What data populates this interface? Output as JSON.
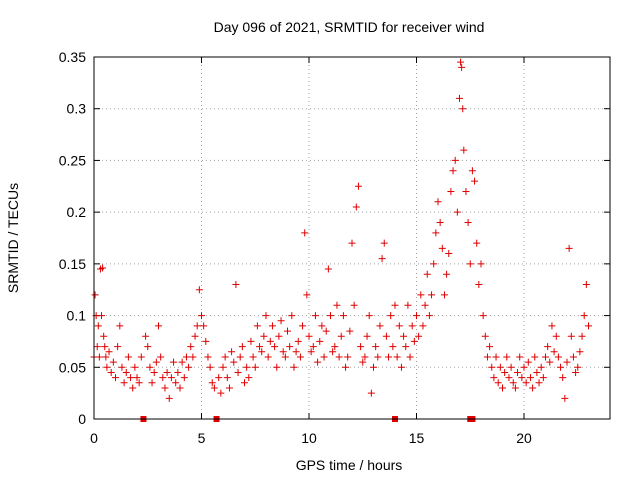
{
  "chart_data": {
    "type": "scatter",
    "title": "Day 096 of 2021, SRMTID for receiver wind",
    "xlabel": "GPS time / hours",
    "ylabel": "SRMTID / TECUs",
    "xlim": [
      0,
      24
    ],
    "ylim": [
      0,
      0.35
    ],
    "xticks": [
      0,
      5,
      10,
      15,
      20
    ],
    "yticks": [
      0,
      0.05,
      0.1,
      0.15,
      0.2,
      0.25,
      0.3,
      0.35
    ],
    "xtick_labels": [
      "0",
      "5",
      "10",
      "15",
      "20"
    ],
    "ytick_labels": [
      "0",
      "0.05",
      "0.1",
      "0.15",
      "0.2",
      "0.25",
      "0.3",
      "0.35"
    ],
    "grid": true,
    "marker": "+",
    "color": "#e00000",
    "gap_markers_x": [
      2.3,
      5.7,
      14.0,
      17.5,
      17.6
    ],
    "series": [
      {
        "name": "wind",
        "points": [
          [
            0.0,
            0.06
          ],
          [
            0.05,
            0.12
          ],
          [
            0.1,
            0.1
          ],
          [
            0.15,
            0.07
          ],
          [
            0.2,
            0.09
          ],
          [
            0.25,
            0.06
          ],
          [
            0.3,
            0.145
          ],
          [
            0.35,
            0.1
          ],
          [
            0.4,
            0.146
          ],
          [
            0.45,
            0.08
          ],
          [
            0.5,
            0.07
          ],
          [
            0.55,
            0.06
          ],
          [
            0.6,
            0.05
          ],
          [
            0.7,
            0.065
          ],
          [
            0.8,
            0.045
          ],
          [
            0.9,
            0.055
          ],
          [
            1.0,
            0.04
          ],
          [
            1.1,
            0.07
          ],
          [
            1.2,
            0.09
          ],
          [
            1.3,
            0.05
          ],
          [
            1.4,
            0.035
          ],
          [
            1.5,
            0.045
          ],
          [
            1.6,
            0.06
          ],
          [
            1.7,
            0.04
          ],
          [
            1.8,
            0.03
          ],
          [
            1.9,
            0.05
          ],
          [
            2.0,
            0.04
          ],
          [
            2.1,
            0.035
          ],
          [
            2.2,
            0.06
          ],
          [
            2.4,
            0.08
          ],
          [
            2.5,
            0.07
          ],
          [
            2.6,
            0.05
          ],
          [
            2.7,
            0.035
          ],
          [
            2.8,
            0.045
          ],
          [
            2.9,
            0.055
          ],
          [
            3.0,
            0.09
          ],
          [
            3.1,
            0.06
          ],
          [
            3.2,
            0.04
          ],
          [
            3.3,
            0.03
          ],
          [
            3.4,
            0.045
          ],
          [
            3.5,
            0.02
          ],
          [
            3.6,
            0.04
          ],
          [
            3.7,
            0.055
          ],
          [
            3.8,
            0.035
          ],
          [
            3.9,
            0.045
          ],
          [
            4.0,
            0.03
          ],
          [
            4.1,
            0.055
          ],
          [
            4.2,
            0.04
          ],
          [
            4.3,
            0.06
          ],
          [
            4.4,
            0.05
          ],
          [
            4.5,
            0.07
          ],
          [
            4.6,
            0.06
          ],
          [
            4.7,
            0.08
          ],
          [
            4.8,
            0.09
          ],
          [
            4.9,
            0.125
          ],
          [
            5.0,
            0.1
          ],
          [
            5.1,
            0.09
          ],
          [
            5.2,
            0.075
          ],
          [
            5.3,
            0.06
          ],
          [
            5.4,
            0.05
          ],
          [
            5.5,
            0.035
          ],
          [
            5.6,
            0.03
          ],
          [
            5.8,
            0.04
          ],
          [
            5.9,
            0.025
          ],
          [
            6.0,
            0.05
          ],
          [
            6.1,
            0.06
          ],
          [
            6.2,
            0.04
          ],
          [
            6.3,
            0.03
          ],
          [
            6.4,
            0.065
          ],
          [
            6.5,
            0.055
          ],
          [
            6.6,
            0.13
          ],
          [
            6.7,
            0.045
          ],
          [
            6.8,
            0.06
          ],
          [
            6.9,
            0.07
          ],
          [
            7.0,
            0.035
          ],
          [
            7.1,
            0.05
          ],
          [
            7.2,
            0.04
          ],
          [
            7.3,
            0.075
          ],
          [
            7.4,
            0.06
          ],
          [
            7.5,
            0.05
          ],
          [
            7.6,
            0.09
          ],
          [
            7.7,
            0.07
          ],
          [
            7.8,
            0.065
          ],
          [
            7.9,
            0.08
          ],
          [
            8.0,
            0.1
          ],
          [
            8.1,
            0.06
          ],
          [
            8.2,
            0.075
          ],
          [
            8.3,
            0.09
          ],
          [
            8.4,
            0.07
          ],
          [
            8.5,
            0.05
          ],
          [
            8.6,
            0.08
          ],
          [
            8.7,
            0.095
          ],
          [
            8.8,
            0.065
          ],
          [
            8.9,
            0.06
          ],
          [
            9.0,
            0.085
          ],
          [
            9.1,
            0.07
          ],
          [
            9.2,
            0.1
          ],
          [
            9.3,
            0.05
          ],
          [
            9.4,
            0.065
          ],
          [
            9.5,
            0.075
          ],
          [
            9.6,
            0.06
          ],
          [
            9.7,
            0.09
          ],
          [
            9.8,
            0.18
          ],
          [
            9.9,
            0.12
          ],
          [
            10.0,
            0.08
          ],
          [
            10.1,
            0.065
          ],
          [
            10.2,
            0.07
          ],
          [
            10.3,
            0.1
          ],
          [
            10.4,
            0.055
          ],
          [
            10.5,
            0.075
          ],
          [
            10.6,
            0.09
          ],
          [
            10.7,
            0.06
          ],
          [
            10.8,
            0.085
          ],
          [
            10.9,
            0.145
          ],
          [
            11.0,
            0.1
          ],
          [
            11.1,
            0.065
          ],
          [
            11.2,
            0.07
          ],
          [
            11.3,
            0.11
          ],
          [
            11.4,
            0.06
          ],
          [
            11.5,
            0.08
          ],
          [
            11.6,
            0.1
          ],
          [
            11.7,
            0.05
          ],
          [
            11.8,
            0.06
          ],
          [
            11.9,
            0.085
          ],
          [
            12.0,
            0.17
          ],
          [
            12.1,
            0.11
          ],
          [
            12.2,
            0.205
          ],
          [
            12.3,
            0.225
          ],
          [
            12.4,
            0.07
          ],
          [
            12.5,
            0.055
          ],
          [
            12.6,
            0.06
          ],
          [
            12.7,
            0.08
          ],
          [
            12.8,
            0.1
          ],
          [
            12.9,
            0.025
          ],
          [
            13.0,
            0.05
          ],
          [
            13.1,
            0.07
          ],
          [
            13.2,
            0.06
          ],
          [
            13.3,
            0.09
          ],
          [
            13.4,
            0.155
          ],
          [
            13.5,
            0.17
          ],
          [
            13.6,
            0.08
          ],
          [
            13.7,
            0.06
          ],
          [
            13.8,
            0.1
          ],
          [
            13.9,
            0.07
          ],
          [
            14.0,
            0.11
          ],
          [
            14.1,
            0.06
          ],
          [
            14.2,
            0.09
          ],
          [
            14.3,
            0.05
          ],
          [
            14.4,
            0.08
          ],
          [
            14.5,
            0.07
          ],
          [
            14.6,
            0.11
          ],
          [
            14.7,
            0.06
          ],
          [
            14.8,
            0.09
          ],
          [
            14.9,
            0.075
          ],
          [
            15.0,
            0.1
          ],
          [
            15.1,
            0.08
          ],
          [
            15.2,
            0.12
          ],
          [
            15.3,
            0.09
          ],
          [
            15.4,
            0.11
          ],
          [
            15.5,
            0.14
          ],
          [
            15.6,
            0.1
          ],
          [
            15.7,
            0.12
          ],
          [
            15.8,
            0.15
          ],
          [
            15.9,
            0.18
          ],
          [
            16.0,
            0.21
          ],
          [
            16.1,
            0.19
          ],
          [
            16.2,
            0.165
          ],
          [
            16.3,
            0.12
          ],
          [
            16.4,
            0.14
          ],
          [
            16.5,
            0.16
          ],
          [
            16.6,
            0.22
          ],
          [
            16.7,
            0.24
          ],
          [
            16.8,
            0.25
          ],
          [
            16.9,
            0.2
          ],
          [
            17.0,
            0.31
          ],
          [
            17.05,
            0.345
          ],
          [
            17.1,
            0.34
          ],
          [
            17.15,
            0.3
          ],
          [
            17.2,
            0.26
          ],
          [
            17.3,
            0.22
          ],
          [
            17.4,
            0.19
          ],
          [
            17.5,
            0.15
          ],
          [
            17.6,
            0.24
          ],
          [
            17.7,
            0.23
          ],
          [
            17.8,
            0.17
          ],
          [
            17.9,
            0.13
          ],
          [
            18.0,
            0.15
          ],
          [
            18.1,
            0.1
          ],
          [
            18.2,
            0.08
          ],
          [
            18.3,
            0.06
          ],
          [
            18.4,
            0.07
          ],
          [
            18.5,
            0.05
          ],
          [
            18.6,
            0.04
          ],
          [
            18.7,
            0.06
          ],
          [
            18.8,
            0.035
          ],
          [
            18.9,
            0.05
          ],
          [
            19.0,
            0.03
          ],
          [
            19.1,
            0.045
          ],
          [
            19.2,
            0.06
          ],
          [
            19.3,
            0.04
          ],
          [
            19.4,
            0.05
          ],
          [
            19.5,
            0.035
          ],
          [
            19.6,
            0.03
          ],
          [
            19.7,
            0.045
          ],
          [
            19.8,
            0.06
          ],
          [
            19.9,
            0.04
          ],
          [
            20.0,
            0.05
          ],
          [
            20.1,
            0.035
          ],
          [
            20.2,
            0.055
          ],
          [
            20.3,
            0.04
          ],
          [
            20.4,
            0.03
          ],
          [
            20.5,
            0.06
          ],
          [
            20.6,
            0.045
          ],
          [
            20.7,
            0.035
          ],
          [
            20.8,
            0.05
          ],
          [
            20.9,
            0.04
          ],
          [
            21.0,
            0.06
          ],
          [
            21.1,
            0.07
          ],
          [
            21.2,
            0.055
          ],
          [
            21.3,
            0.09
          ],
          [
            21.4,
            0.065
          ],
          [
            21.5,
            0.08
          ],
          [
            21.6,
            0.06
          ],
          [
            21.7,
            0.05
          ],
          [
            21.8,
            0.04
          ],
          [
            21.9,
            0.02
          ],
          [
            22.0,
            0.055
          ],
          [
            22.1,
            0.165
          ],
          [
            22.2,
            0.08
          ],
          [
            22.3,
            0.06
          ],
          [
            22.4,
            0.045
          ],
          [
            22.5,
            0.05
          ],
          [
            22.6,
            0.065
          ],
          [
            22.7,
            0.08
          ],
          [
            22.8,
            0.1
          ],
          [
            22.9,
            0.13
          ],
          [
            23.0,
            0.09
          ]
        ]
      }
    ]
  }
}
